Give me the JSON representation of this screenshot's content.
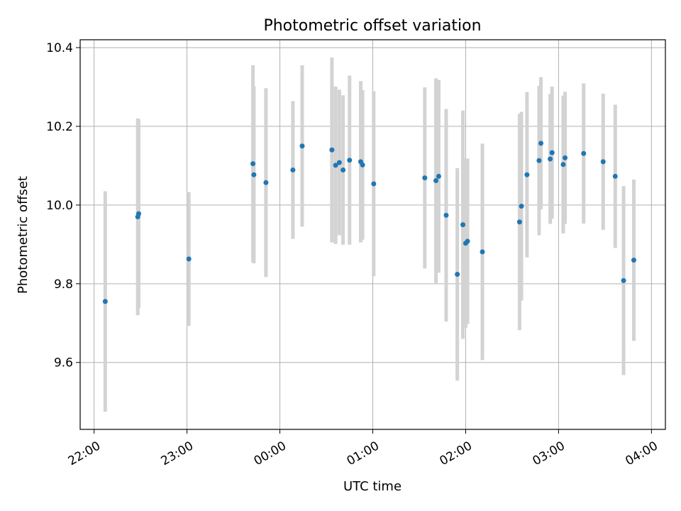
{
  "chart_data": {
    "type": "scatter",
    "title": "Photometric offset variation",
    "xlabel": "UTC time",
    "ylabel": "Photometric offset",
    "x_unit": "hours since 22:00 UTC",
    "xlim": [
      -0.15,
      6.15
    ],
    "ylim": [
      9.43,
      10.42
    ],
    "grid": true,
    "x_ticks": [
      {
        "value": 0,
        "label": "22:00"
      },
      {
        "value": 1,
        "label": "23:00"
      },
      {
        "value": 2,
        "label": "00:00"
      },
      {
        "value": 3,
        "label": "01:00"
      },
      {
        "value": 4,
        "label": "02:00"
      },
      {
        "value": 5,
        "label": "03:00"
      },
      {
        "value": 6,
        "label": "04:00"
      }
    ],
    "y_ticks": [
      {
        "value": 9.6,
        "label": "9.6"
      },
      {
        "value": 9.8,
        "label": "9.8"
      },
      {
        "value": 10.0,
        "label": "10.0"
      },
      {
        "value": 10.2,
        "label": "10.2"
      },
      {
        "value": 10.4,
        "label": "10.4"
      }
    ],
    "marker_color": "#1f77b4",
    "errorbar_color": "#d3d3d3",
    "points": [
      {
        "x": 0.12,
        "y": 9.755,
        "err": 0.28
      },
      {
        "x": 0.47,
        "y": 9.97,
        "err": 0.25
      },
      {
        "x": 0.48,
        "y": 9.978,
        "err": 0.24
      },
      {
        "x": 1.02,
        "y": 9.863,
        "err": 0.17
      },
      {
        "x": 1.71,
        "y": 10.105,
        "err": 0.25
      },
      {
        "x": 1.72,
        "y": 10.077,
        "err": 0.225
      },
      {
        "x": 1.85,
        "y": 10.057,
        "err": 0.24
      },
      {
        "x": 2.14,
        "y": 10.089,
        "err": 0.175
      },
      {
        "x": 2.24,
        "y": 10.15,
        "err": 0.205
      },
      {
        "x": 2.56,
        "y": 10.14,
        "err": 0.235
      },
      {
        "x": 2.6,
        "y": 10.101,
        "err": 0.2
      },
      {
        "x": 2.64,
        "y": 10.108,
        "err": 0.185
      },
      {
        "x": 2.68,
        "y": 10.089,
        "err": 0.19
      },
      {
        "x": 2.75,
        "y": 10.114,
        "err": 0.215
      },
      {
        "x": 2.87,
        "y": 10.11,
        "err": 0.205
      },
      {
        "x": 2.89,
        "y": 10.102,
        "err": 0.19
      },
      {
        "x": 3.01,
        "y": 10.054,
        "err": 0.235
      },
      {
        "x": 3.56,
        "y": 10.069,
        "err": 0.23
      },
      {
        "x": 3.68,
        "y": 10.062,
        "err": 0.26
      },
      {
        "x": 3.71,
        "y": 10.073,
        "err": 0.245
      },
      {
        "x": 3.79,
        "y": 9.974,
        "err": 0.27
      },
      {
        "x": 3.91,
        "y": 9.824,
        "err": 0.27
      },
      {
        "x": 3.97,
        "y": 9.95,
        "err": 0.29
      },
      {
        "x": 4.0,
        "y": 9.903,
        "err": 0.215
      },
      {
        "x": 4.02,
        "y": 9.908,
        "err": 0.21
      },
      {
        "x": 4.18,
        "y": 9.881,
        "err": 0.275
      },
      {
        "x": 4.58,
        "y": 9.957,
        "err": 0.275
      },
      {
        "x": 4.6,
        "y": 9.997,
        "err": 0.24
      },
      {
        "x": 4.66,
        "y": 10.077,
        "err": 0.21
      },
      {
        "x": 4.79,
        "y": 10.113,
        "err": 0.19
      },
      {
        "x": 4.81,
        "y": 10.157,
        "err": 0.168
      },
      {
        "x": 4.91,
        "y": 10.117,
        "err": 0.165
      },
      {
        "x": 4.93,
        "y": 10.133,
        "err": 0.168
      },
      {
        "x": 5.05,
        "y": 10.103,
        "err": 0.175
      },
      {
        "x": 5.07,
        "y": 10.12,
        "err": 0.168
      },
      {
        "x": 5.27,
        "y": 10.131,
        "err": 0.178
      },
      {
        "x": 5.48,
        "y": 10.11,
        "err": 0.173
      },
      {
        "x": 5.61,
        "y": 10.073,
        "err": 0.182
      },
      {
        "x": 5.7,
        "y": 9.808,
        "err": 0.24
      },
      {
        "x": 5.81,
        "y": 9.86,
        "err": 0.205
      }
    ]
  }
}
